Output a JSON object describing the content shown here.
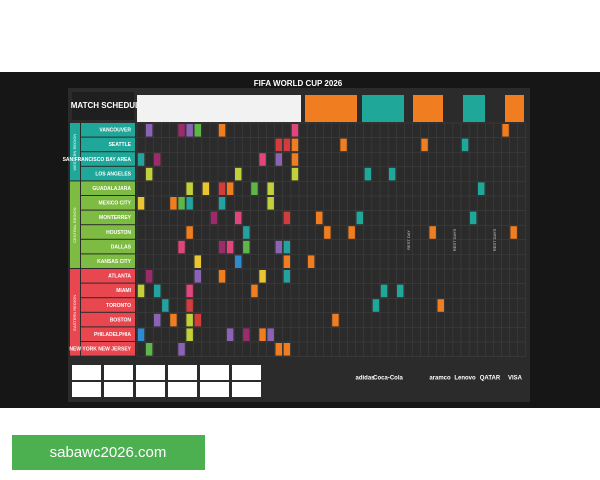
{
  "poster": {
    "title": "FIFA WORLD CUP 2026",
    "subtitle": "MATCH SCHEDULE",
    "regions": [
      {
        "label": "WESTERN REGION",
        "cities": [
          "VANCOUVER",
          "SEATTLE",
          "SAN FRANCISCO BAY AREA",
          "LOS ANGELES"
        ]
      },
      {
        "label": "CENTRAL REGION",
        "cities": [
          "GUADALAJARA",
          "MEXICO CITY",
          "MONTERREY",
          "HOUSTON",
          "DALLAS",
          "KANSAS CITY"
        ]
      },
      {
        "label": "EASTERN REGION",
        "cities": [
          "ATLANTA",
          "MIAMI",
          "TORONTO",
          "BOSTON",
          "PHILADELPHIA",
          "NEW YORK NEW JERSEY"
        ]
      }
    ],
    "rest_days": [
      "REST DAY",
      "REST DAYS",
      "REST DAYS"
    ],
    "sponsors": [
      "adidas",
      "Coca-Cola",
      "aramco",
      "Lenovo",
      "QATAR",
      "VISA"
    ]
  },
  "footer": {
    "link": "sabawc2026.com"
  }
}
